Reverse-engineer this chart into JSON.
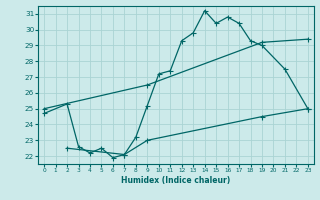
{
  "xlabel": "Humidex (Indice chaleur)",
  "bg_color": "#cceaea",
  "grid_color": "#aad4d4",
  "line_color": "#006666",
  "ylim": [
    21.5,
    31.5
  ],
  "xlim": [
    -0.5,
    23.5
  ],
  "yticks": [
    22,
    23,
    24,
    25,
    26,
    27,
    28,
    29,
    30,
    31
  ],
  "xticks": [
    0,
    1,
    2,
    3,
    4,
    5,
    6,
    7,
    8,
    9,
    10,
    11,
    12,
    13,
    14,
    15,
    16,
    17,
    18,
    19,
    20,
    21,
    22,
    23
  ],
  "curve1_x": [
    0,
    2,
    3,
    4,
    5,
    6,
    7,
    8,
    9,
    10,
    11,
    12,
    13,
    14,
    15,
    16,
    17,
    18,
    19,
    21,
    23
  ],
  "curve1_y": [
    24.7,
    25.3,
    22.6,
    22.2,
    22.5,
    21.9,
    22.1,
    23.2,
    25.2,
    27.2,
    27.4,
    29.3,
    29.8,
    31.2,
    30.4,
    30.8,
    30.4,
    29.3,
    29.0,
    27.5,
    25.0
  ],
  "curve2_x": [
    0,
    9,
    19,
    23
  ],
  "curve2_y": [
    25.0,
    26.5,
    29.2,
    29.4
  ],
  "curve3_x": [
    2,
    7,
    9,
    19,
    23
  ],
  "curve3_y": [
    22.5,
    22.1,
    23.0,
    24.5,
    25.0
  ]
}
